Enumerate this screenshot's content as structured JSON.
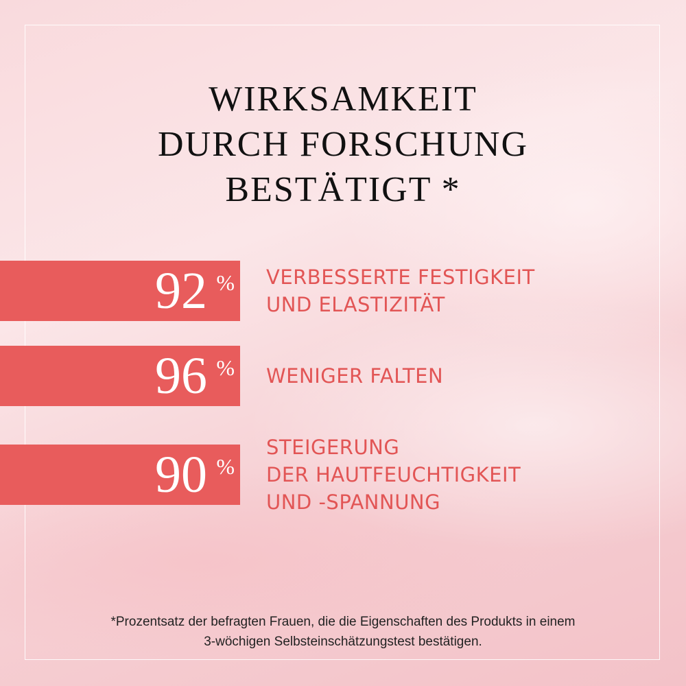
{
  "title": {
    "lines": [
      "WIRKSAMKEIT",
      "DURCH FORSCHUNG",
      "BESTÄTIGT *"
    ]
  },
  "stats": [
    {
      "number": "92",
      "sign": "%",
      "lines": [
        "VERBESSERTE FESTIGKEIT",
        "UND ELASTIZITÄT"
      ]
    },
    {
      "number": "96",
      "sign": "%",
      "lines": [
        "WENIGER FALTEN"
      ]
    },
    {
      "number": "90",
      "sign": "%",
      "lines": [
        "STEIGERUNG",
        "DER HAUTFEUCHTIGKEIT",
        "UND -SPANNUNG"
      ]
    }
  ],
  "footnote": {
    "lines": [
      "*Prozentsatz der befragten Frauen, die die Eigenschaften des Produkts in einem",
      "3-wöchigen Selbsteinschätzungstest bestätigen."
    ]
  }
}
